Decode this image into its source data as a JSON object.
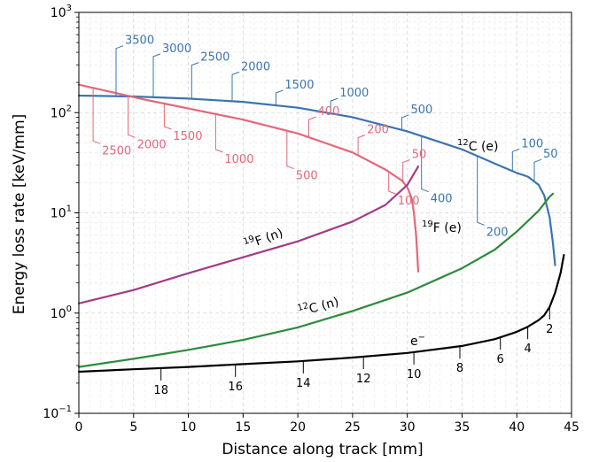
{
  "chart_data": {
    "type": "line",
    "xlabel": "Distance along track [mm]",
    "ylabel": "Energy loss rate [keV/mm]",
    "xlim": [
      0,
      45
    ],
    "ylim": [
      0.1,
      1000
    ],
    "yscale": "log",
    "grid": "on",
    "xticks": [
      "0",
      "5",
      "10",
      "15",
      "20",
      "25",
      "30",
      "35",
      "40",
      "45"
    ],
    "yticks": [
      {
        "base": "10",
        "exp": "−1",
        "value": 0.1
      },
      {
        "base": "10",
        "exp": "0",
        "value": 1
      },
      {
        "base": "10",
        "exp": "1",
        "value": 10
      },
      {
        "base": "10",
        "exp": "2",
        "value": 100
      },
      {
        "base": "10",
        "exp": "3",
        "value": 1000
      }
    ],
    "series": [
      {
        "key": "c12e",
        "label_sup": "12",
        "label_main": "C (e)",
        "color": "#3b75af",
        "points": [
          [
            0,
            148
          ],
          [
            5,
            145
          ],
          [
            10,
            138
          ],
          [
            15,
            128
          ],
          [
            20,
            112
          ],
          [
            25,
            90
          ],
          [
            30,
            65
          ],
          [
            35,
            43
          ],
          [
            38,
            31
          ],
          [
            40,
            25
          ],
          [
            41,
            23
          ],
          [
            42,
            19
          ],
          [
            42.5,
            15
          ],
          [
            43,
            9
          ],
          [
            43.3,
            5
          ],
          [
            43.5,
            3
          ]
        ],
        "annotations": [
          {
            "text": "3500",
            "x": 3.4
          },
          {
            "text": "3000",
            "x": 6.8
          },
          {
            "text": "2500",
            "x": 10.3
          },
          {
            "text": "2000",
            "x": 14
          },
          {
            "text": "1500",
            "x": 18
          },
          {
            "text": "1000",
            "x": 23
          },
          {
            "text": "500",
            "x": 29.5
          },
          {
            "text": "400",
            "x": 31.3
          },
          {
            "text": "200",
            "x": 36.4
          },
          {
            "text": "100",
            "x": 39.6
          },
          {
            "text": "50",
            "x": 41.6
          }
        ]
      },
      {
        "key": "f19e",
        "label_sup": "19",
        "label_main": "F (e)",
        "color": "#e4677a",
        "points": [
          [
            0,
            190
          ],
          [
            3,
            160
          ],
          [
            6,
            135
          ],
          [
            10,
            110
          ],
          [
            15,
            85
          ],
          [
            20,
            62
          ],
          [
            25,
            40
          ],
          [
            28,
            27
          ],
          [
            29.5,
            21
          ],
          [
            30,
            18
          ],
          [
            30.4,
            14
          ],
          [
            30.6,
            10
          ],
          [
            30.8,
            6
          ],
          [
            30.9,
            4
          ],
          [
            31,
            2.6
          ]
        ],
        "annotations": [
          {
            "text": "2500",
            "x": 1.3
          },
          {
            "text": "2000",
            "x": 4.5
          },
          {
            "text": "1500",
            "x": 7.8
          },
          {
            "text": "1000",
            "x": 12.5
          },
          {
            "text": "500",
            "x": 19
          },
          {
            "text": "400",
            "x": 21
          },
          {
            "text": "200",
            "x": 25.5
          },
          {
            "text": "100",
            "x": 28.3
          },
          {
            "text": "50",
            "x": 29.6
          }
        ]
      },
      {
        "key": "f19n",
        "label_sup": "19",
        "label_main": "F (n)",
        "color": "#a33b84",
        "points": [
          [
            0,
            1.25
          ],
          [
            5,
            1.7
          ],
          [
            10,
            2.5
          ],
          [
            15,
            3.6
          ],
          [
            20,
            5.2
          ],
          [
            25,
            8.2
          ],
          [
            28,
            12
          ],
          [
            30,
            19
          ],
          [
            31,
            29
          ]
        ],
        "annotations": []
      },
      {
        "key": "c12n",
        "label_sup": "12",
        "label_main": "C (n)",
        "color": "#2d8a3d",
        "points": [
          [
            0,
            0.29
          ],
          [
            5,
            0.35
          ],
          [
            10,
            0.43
          ],
          [
            15,
            0.54
          ],
          [
            20,
            0.72
          ],
          [
            25,
            1.05
          ],
          [
            30,
            1.6
          ],
          [
            35,
            2.8
          ],
          [
            38,
            4.3
          ],
          [
            40,
            6.5
          ],
          [
            42,
            10.5
          ],
          [
            43,
            14.5
          ],
          [
            43.3,
            15.5
          ]
        ],
        "annotations": []
      },
      {
        "key": "electron",
        "label_sup": "−",
        "label_main": "e",
        "color": "#000000",
        "points": [
          [
            0,
            0.26
          ],
          [
            5,
            0.275
          ],
          [
            10,
            0.29
          ],
          [
            15,
            0.31
          ],
          [
            20,
            0.33
          ],
          [
            25,
            0.36
          ],
          [
            30,
            0.4
          ],
          [
            35,
            0.47
          ],
          [
            38,
            0.55
          ],
          [
            40,
            0.65
          ],
          [
            41,
            0.73
          ],
          [
            42,
            0.85
          ],
          [
            42.5,
            0.95
          ],
          [
            43,
            1.15
          ],
          [
            43.5,
            1.6
          ],
          [
            44,
            2.5
          ],
          [
            44.3,
            3.8
          ]
        ],
        "annotations": [
          {
            "text": "18",
            "x": 7.5
          },
          {
            "text": "16",
            "x": 14.3
          },
          {
            "text": "14",
            "x": 20.5
          },
          {
            "text": "12",
            "x": 26
          },
          {
            "text": "10",
            "x": 30.6
          },
          {
            "text": "8",
            "x": 34.8
          },
          {
            "text": "6",
            "x": 38.5
          },
          {
            "text": "4",
            "x": 41
          },
          {
            "text": "2",
            "x": 43
          }
        ]
      }
    ]
  }
}
